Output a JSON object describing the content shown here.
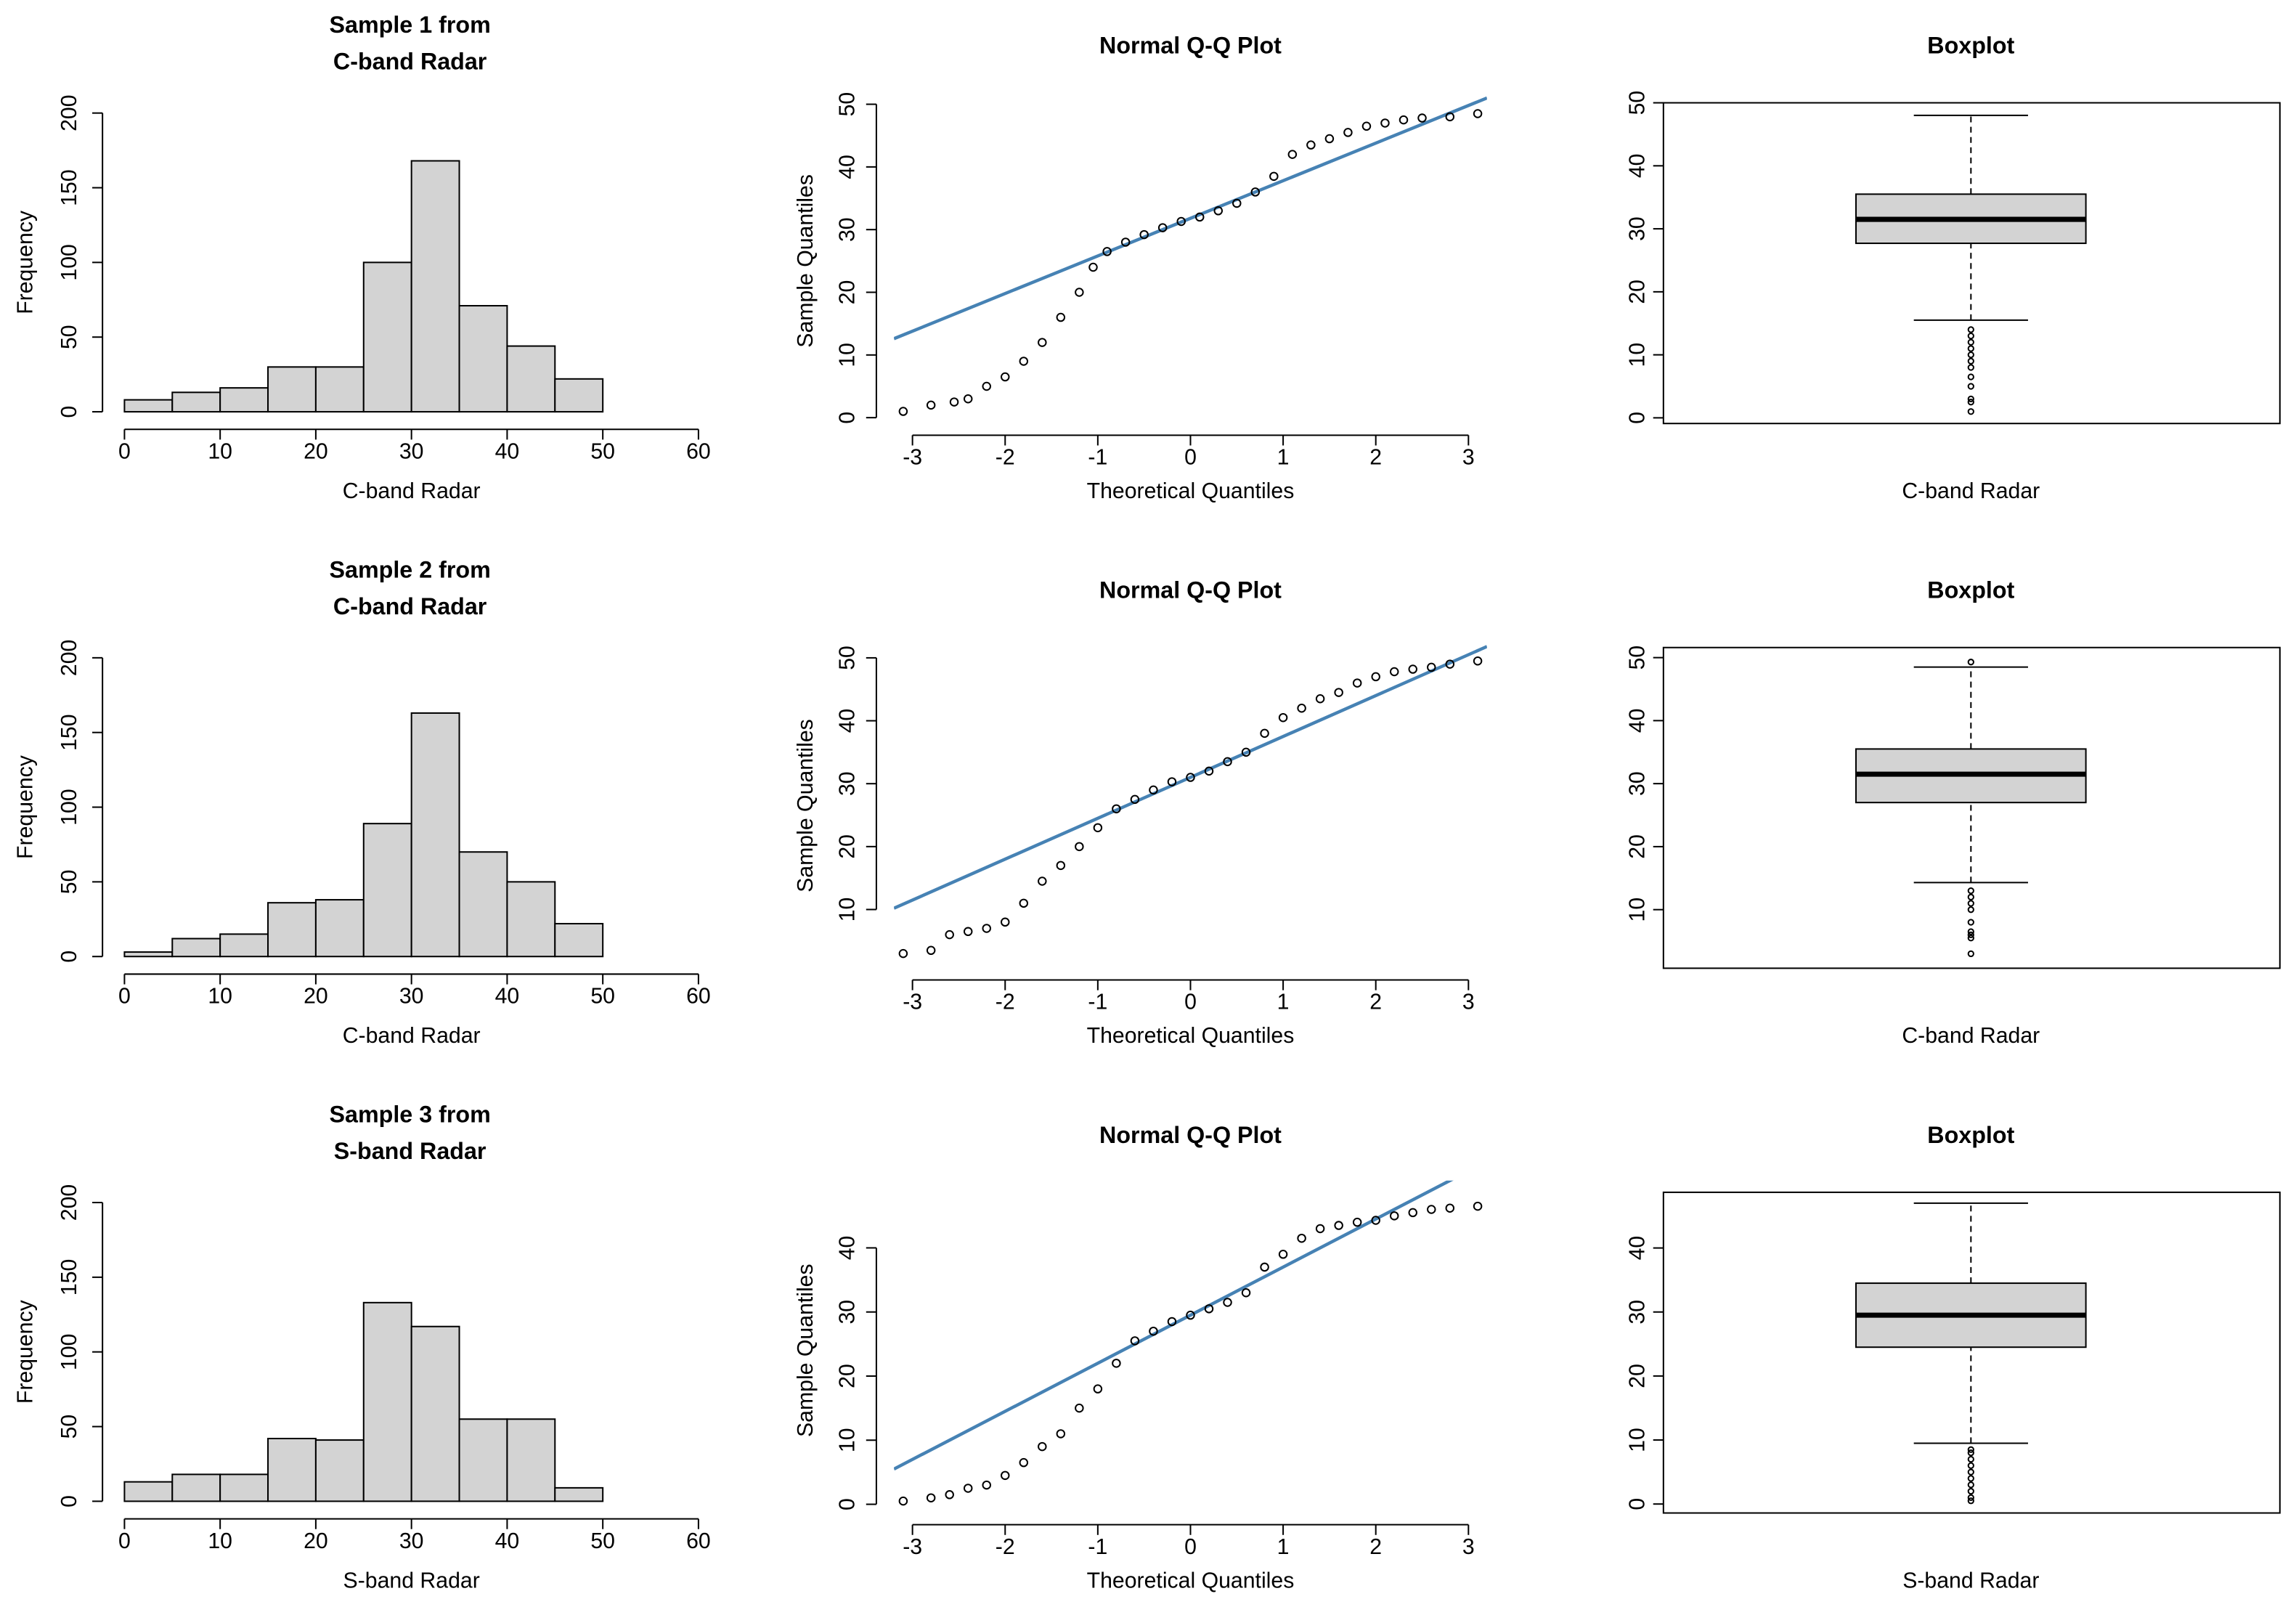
{
  "chart_data": [
    {
      "type": "histogram",
      "title": [
        "Sample 1 from",
        "C-band Radar"
      ],
      "x_label": "C-band Radar",
      "y_label": "Frequency",
      "bins": [
        0,
        5,
        10,
        15,
        20,
        25,
        30,
        35,
        40,
        45,
        50
      ],
      "values": [
        8,
        13,
        16,
        30,
        30,
        100,
        168,
        71,
        44,
        22
      ],
      "color": "#d3d3d3",
      "xlim": [
        0,
        60
      ],
      "xticks": [
        0,
        10,
        20,
        30,
        40,
        50,
        60
      ],
      "ylim": [
        0,
        200
      ],
      "yticks": [
        0,
        50,
        100,
        150,
        200
      ]
    },
    {
      "type": "qq",
      "title": "Normal Q-Q Plot",
      "x_label": "Theoretical Quantiles",
      "y_label": "Sample Quantiles",
      "x": [
        -3.1,
        -2.8,
        -2.55,
        -2.4,
        -2.2,
        -2.0,
        -1.8,
        -1.6,
        -1.4,
        -1.2,
        -1.05,
        -0.9,
        -0.7,
        -0.5,
        -0.3,
        -0.1,
        0.1,
        0.3,
        0.5,
        0.7,
        0.9,
        1.1,
        1.3,
        1.5,
        1.7,
        1.9,
        2.1,
        2.3,
        2.5,
        2.8,
        3.1
      ],
      "values": [
        1,
        2,
        2.5,
        3,
        5,
        6.5,
        9,
        12,
        16,
        20,
        24,
        26.5,
        28,
        29.2,
        30.3,
        31.3,
        32,
        33,
        34.2,
        36,
        38.5,
        42,
        43.5,
        44.5,
        45.5,
        46.5,
        47,
        47.5,
        47.8,
        48,
        48.5
      ],
      "qq_line": {
        "intercept": 31.8,
        "slope": 6.0,
        "color": "#4682b4"
      },
      "xlim": [
        -3.2,
        3.2
      ],
      "xticks": [
        -3,
        -2,
        -1,
        0,
        1,
        2,
        3
      ],
      "ylim": [
        -2.1,
        52.1
      ],
      "yticks": [
        0,
        10,
        20,
        30,
        40,
        50
      ]
    },
    {
      "type": "box",
      "title": "Boxplot",
      "x_label": "C-band Radar",
      "values": [
        15.5,
        27.7,
        31.5,
        35.5,
        48
      ],
      "outliers": [
        1,
        2.5,
        3,
        5,
        6.5,
        8,
        9,
        10,
        11,
        12,
        13,
        14
      ],
      "color": "#d3d3d3",
      "ylim": [
        -0.9,
        50
      ],
      "yticks": [
        0,
        10,
        20,
        30,
        40,
        50
      ]
    },
    {
      "type": "histogram",
      "title": [
        "Sample 2 from",
        "C-band Radar"
      ],
      "x_label": "C-band Radar",
      "y_label": "Frequency",
      "bins": [
        0,
        5,
        10,
        15,
        20,
        25,
        30,
        35,
        40,
        45,
        50
      ],
      "values": [
        3,
        12,
        15,
        36,
        38,
        89,
        163,
        70,
        50,
        22
      ],
      "color": "#d3d3d3",
      "xlim": [
        0,
        60
      ],
      "xticks": [
        0,
        10,
        20,
        30,
        40,
        50,
        60
      ],
      "ylim": [
        0,
        200
      ],
      "yticks": [
        0,
        50,
        100,
        150,
        200
      ]
    },
    {
      "type": "qq",
      "title": "Normal Q-Q Plot",
      "x_label": "Theoretical Quantiles",
      "y_label": "Sample Quantiles",
      "x": [
        -3.1,
        -2.8,
        -2.6,
        -2.4,
        -2.2,
        -2.0,
        -1.8,
        -1.6,
        -1.4,
        -1.2,
        -1.0,
        -0.8,
        -0.6,
        -0.4,
        -0.2,
        0,
        0.2,
        0.4,
        0.6,
        0.8,
        1.0,
        1.2,
        1.4,
        1.6,
        1.8,
        2.0,
        2.2,
        2.4,
        2.6,
        2.8,
        3.1
      ],
      "values": [
        3,
        3.5,
        6,
        6.5,
        7,
        8,
        11,
        14.5,
        17,
        20,
        23,
        26,
        27.5,
        29,
        30.3,
        31,
        32,
        33.5,
        35,
        38,
        40.5,
        42,
        43.5,
        44.5,
        46,
        47,
        47.8,
        48.2,
        48.5,
        49,
        49.5
      ],
      "qq_line": {
        "intercept": 31,
        "slope": 6.5,
        "color": "#4682b4"
      },
      "xlim": [
        -3.2,
        3.2
      ],
      "xticks": [
        -3,
        -2,
        -1,
        0,
        1,
        2,
        3
      ],
      "ylim": [
        -0.5,
        53.5
      ],
      "yticks": [
        10,
        20,
        30,
        40,
        50
      ]
    },
    {
      "type": "box",
      "title": "Boxplot",
      "x_label": "C-band Radar",
      "values": [
        14.3,
        27,
        31.5,
        35.5,
        48.5
      ],
      "outliers": [
        3,
        5.5,
        6,
        6.5,
        8,
        10,
        11,
        12,
        13,
        49.3
      ],
      "color": "#d3d3d3",
      "ylim": [
        0.7,
        51.6
      ],
      "yticks": [
        10,
        20,
        30,
        40,
        50
      ]
    },
    {
      "type": "histogram",
      "title": [
        "Sample 3 from",
        "S-band Radar"
      ],
      "x_label": "S-band Radar",
      "y_label": "Frequency",
      "bins": [
        0,
        5,
        10,
        15,
        20,
        25,
        30,
        35,
        40,
        45,
        50
      ],
      "values": [
        13,
        18,
        18,
        42,
        41,
        133,
        117,
        55,
        55,
        9
      ],
      "color": "#d3d3d3",
      "xlim": [
        0,
        60
      ],
      "xticks": [
        0,
        10,
        20,
        30,
        40,
        50,
        60
      ],
      "ylim": [
        0,
        200
      ],
      "yticks": [
        0,
        50,
        100,
        150,
        200
      ]
    },
    {
      "type": "qq",
      "title": "Normal Q-Q Plot",
      "x_label": "Theoretical Quantiles",
      "y_label": "Sample Quantiles",
      "x": [
        -3.1,
        -2.8,
        -2.6,
        -2.4,
        -2.2,
        -2.0,
        -1.8,
        -1.6,
        -1.4,
        -1.2,
        -1.0,
        -0.8,
        -0.6,
        -0.4,
        -0.2,
        0,
        0.2,
        0.4,
        0.6,
        0.8,
        1.0,
        1.2,
        1.4,
        1.6,
        1.8,
        2.0,
        2.2,
        2.4,
        2.6,
        2.8,
        3.1
      ],
      "values": [
        0.5,
        1,
        1.5,
        2.5,
        3,
        4.5,
        6.5,
        9,
        11,
        15,
        18,
        22,
        25.5,
        27,
        28.5,
        29.5,
        30.5,
        31.5,
        33,
        37,
        39,
        41.5,
        43,
        43.5,
        44,
        44.3,
        45,
        45.5,
        46,
        46.2,
        46.5
      ],
      "qq_line": {
        "intercept": 29.5,
        "slope": 7.5,
        "color": "#4682b4"
      },
      "xlim": [
        -3.2,
        3.2
      ],
      "xticks": [
        -3,
        -2,
        -1,
        0,
        1,
        2,
        3
      ],
      "ylim": [
        -2.5,
        50.5
      ],
      "yticks": [
        0,
        10,
        20,
        30,
        40
      ]
    },
    {
      "type": "box",
      "title": "Boxplot",
      "x_label": "S-band Radar",
      "values": [
        9.5,
        24.5,
        29.5,
        34.5,
        47
      ],
      "outliers": [
        0.5,
        1,
        2,
        3,
        4,
        5,
        6,
        7,
        8,
        8.5
      ],
      "color": "#d3d3d3",
      "ylim": [
        -1.4,
        48.7
      ],
      "yticks": [
        0,
        10,
        20,
        30,
        40
      ]
    }
  ]
}
